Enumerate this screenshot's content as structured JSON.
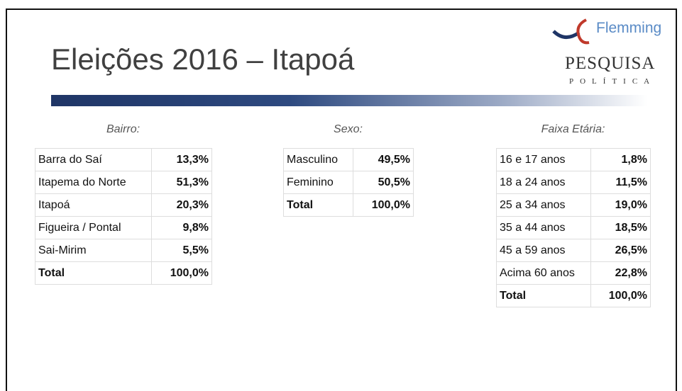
{
  "header": {
    "title": "Eleições 2016 – Itapoá"
  },
  "logo": {
    "brand": "Flemming",
    "line1": "PESQUISA",
    "line2": "POLÍTICA"
  },
  "tables": [
    {
      "caption": "Bairro:",
      "rows": [
        [
          "Barra do Saí",
          "13,3%"
        ],
        [
          "Itapema do Norte",
          "51,3%"
        ],
        [
          "Itapoá",
          "20,3%"
        ],
        [
          "Figueira / Pontal",
          "9,8%"
        ],
        [
          "Sai-Mirim",
          "5,5%"
        ],
        [
          "Total",
          "100,0%"
        ]
      ]
    },
    {
      "caption": "Sexo:",
      "rows": [
        [
          "Masculino",
          "49,5%"
        ],
        [
          "Feminino",
          "50,5%"
        ],
        [
          "Total",
          "100,0%"
        ]
      ]
    },
    {
      "caption": "Faixa Etária:",
      "rows": [
        [
          "16 e 17 anos",
          "1,8%"
        ],
        [
          "18 a 24 anos",
          "11,5%"
        ],
        [
          "25 a 34 anos",
          "19,0%"
        ],
        [
          "35 a 44 anos",
          "18,5%"
        ],
        [
          "45 a 59 anos",
          "26,5%"
        ],
        [
          "Acima 60 anos",
          "22,8%"
        ],
        [
          "Total",
          "100,0%"
        ]
      ]
    }
  ]
}
